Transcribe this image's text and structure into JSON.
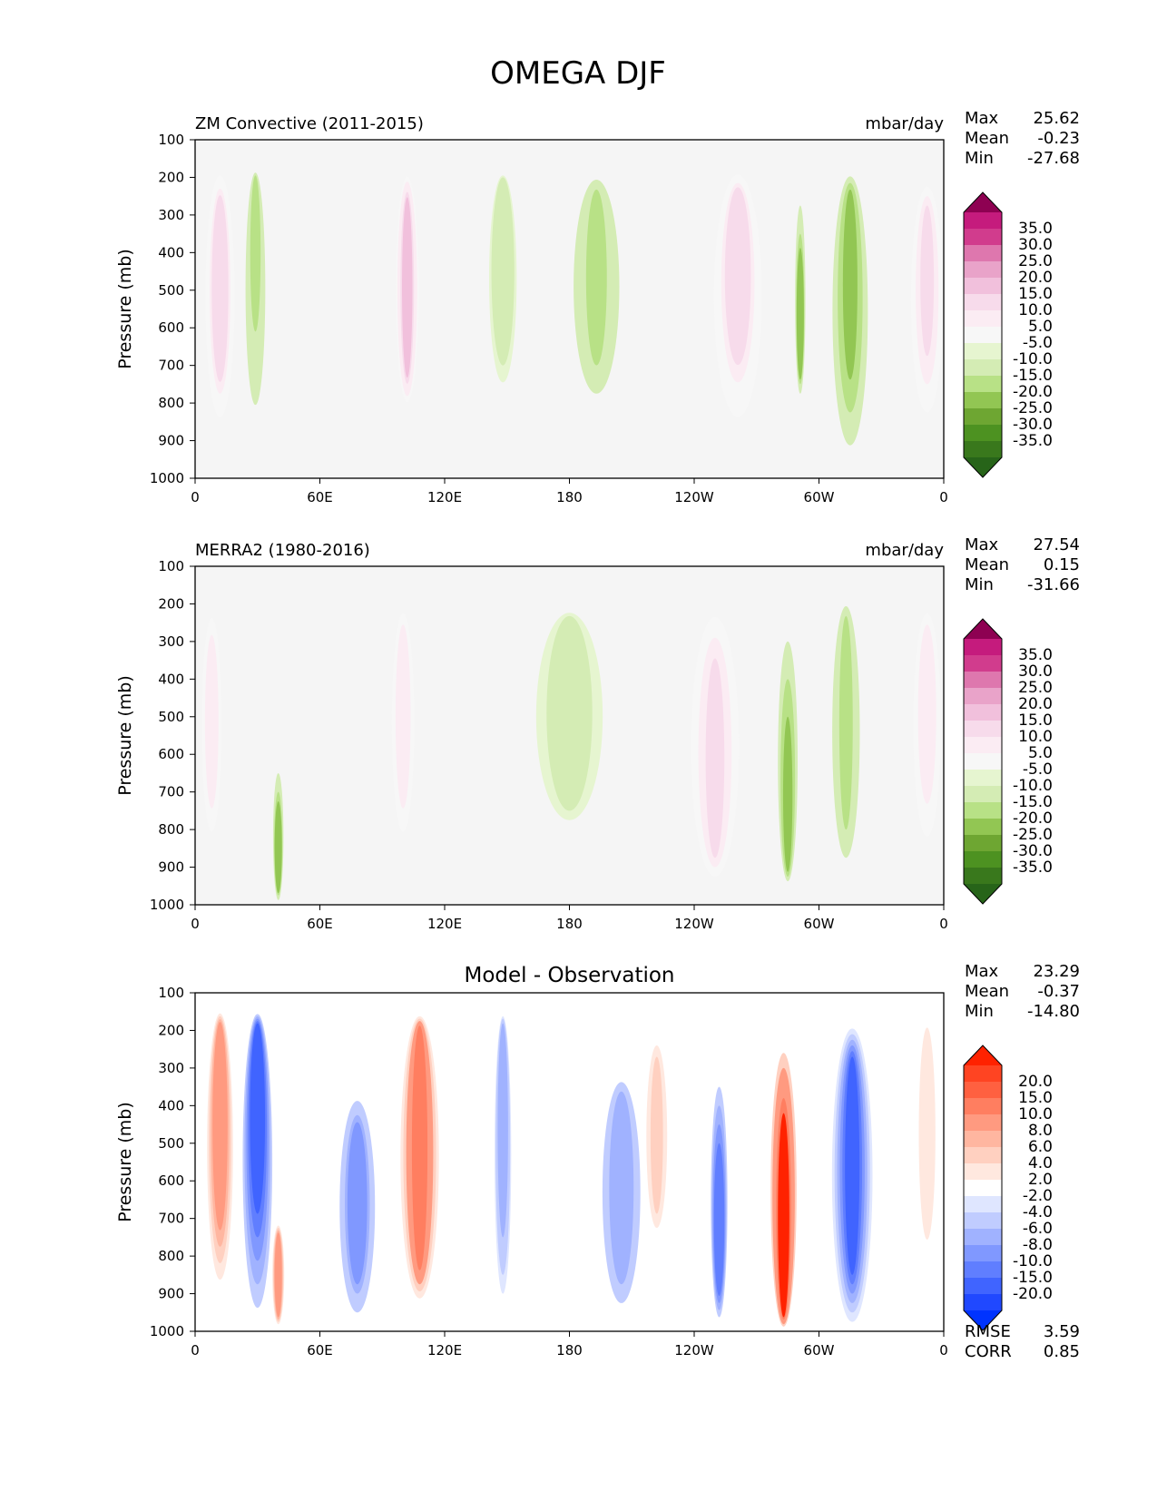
{
  "title": "OMEGA DJF",
  "colors": {
    "background": "#f5f5f5",
    "pink_strong": "#8e0152",
    "green_strong": "#276419",
    "red_strong": "#ff2200",
    "blue_strong": "#0033ff",
    "neutral": "#ffffff"
  },
  "axes_common": {
    "ylabel": "Pressure (mb)",
    "y_ticks": [
      "100",
      "200",
      "300",
      "400",
      "500",
      "600",
      "700",
      "800",
      "900",
      "1000"
    ],
    "x_ticks": [
      "0",
      "60E",
      "120E",
      "180",
      "120W",
      "60W",
      "0"
    ],
    "ylim": [
      100,
      1000
    ],
    "xlim": [
      0,
      360
    ]
  },
  "panels": [
    {
      "id": "model",
      "title_left": "ZM Convective (2011-2015)",
      "title_right": "mbar/day",
      "title_center": "",
      "stats": [
        {
          "label": "Max",
          "value": "25.62"
        },
        {
          "label": "Mean",
          "value": "-0.23"
        },
        {
          "label": "Min",
          "value": "-27.68"
        }
      ],
      "colorbar_labels": [
        "35.0",
        "30.0",
        "25.0",
        "20.0",
        "15.0",
        "10.0",
        "5.0",
        "-5.0",
        "-10.0",
        "-15.0",
        "-20.0",
        "-25.0",
        "-30.0",
        "-35.0"
      ],
      "colorbar_colors": [
        "#c51b7d",
        "#d13c8d",
        "#de77ae",
        "#e9a3c9",
        "#f1c0dc",
        "#f7dbeb",
        "#fbecf3",
        "#f7f7f7",
        "#e6f5d0",
        "#d4ecb4",
        "#b8e186",
        "#92c653",
        "#6ea632",
        "#4d9221",
        "#39781c"
      ],
      "extend_top": "#8e0152",
      "extend_bottom": "#276419",
      "rmse": null,
      "corr": null
    },
    {
      "id": "obs",
      "title_left": "MERRA2 (1980-2016)",
      "title_right": "mbar/day",
      "title_center": "",
      "stats": [
        {
          "label": "Max",
          "value": "27.54"
        },
        {
          "label": "Mean",
          "value": "0.15"
        },
        {
          "label": "Min",
          "value": "-31.66"
        }
      ],
      "colorbar_labels": [
        "35.0",
        "30.0",
        "25.0",
        "20.0",
        "15.0",
        "10.0",
        "5.0",
        "-5.0",
        "-10.0",
        "-15.0",
        "-20.0",
        "-25.0",
        "-30.0",
        "-35.0"
      ],
      "colorbar_colors": [
        "#c51b7d",
        "#d13c8d",
        "#de77ae",
        "#e9a3c9",
        "#f1c0dc",
        "#f7dbeb",
        "#fbecf3",
        "#f7f7f7",
        "#e6f5d0",
        "#d4ecb4",
        "#b8e186",
        "#92c653",
        "#6ea632",
        "#4d9221",
        "#39781c"
      ],
      "extend_top": "#8e0152",
      "extend_bottom": "#276419",
      "rmse": null,
      "corr": null
    },
    {
      "id": "diff",
      "title_left": "",
      "title_right": "",
      "title_center": "Model - Observation",
      "stats": [
        {
          "label": "Max",
          "value": "23.29"
        },
        {
          "label": "Mean",
          "value": "-0.37"
        },
        {
          "label": "Min",
          "value": "-14.80"
        }
      ],
      "colorbar_labels": [
        "20.0",
        "15.0",
        "10.0",
        "8.0",
        "6.0",
        "4.0",
        "2.0",
        "-2.0",
        "-4.0",
        "-6.0",
        "-8.0",
        "-10.0",
        "-15.0",
        "-20.0"
      ],
      "colorbar_colors": [
        "#ff4422",
        "#ff6040",
        "#ff7e60",
        "#ff9a80",
        "#ffb6a0",
        "#ffd0c0",
        "#ffe8df",
        "#ffffff",
        "#dfe6ff",
        "#c0ccff",
        "#a0b2ff",
        "#8098ff",
        "#607eff",
        "#4064ff",
        "#2048ff"
      ],
      "extend_top": "#ff2200",
      "extend_bottom": "#0033ff",
      "rmse": {
        "label": "RMSE",
        "value": "3.59"
      },
      "corr": {
        "label": "CORR",
        "value": "0.85"
      }
    }
  ],
  "chart_data": [
    {
      "type": "heatmap",
      "title": "ZM Convective (2011-2015)",
      "units": "mbar/day",
      "xlabel": "",
      "ylabel": "Pressure (mb)",
      "x_ticks": [
        "0",
        "60E",
        "120E",
        "180",
        "120W",
        "60W",
        "0"
      ],
      "y_ticks": [
        "100",
        "200",
        "300",
        "400",
        "500",
        "600",
        "700",
        "800",
        "900",
        "1000"
      ],
      "xlim": [
        0,
        360
      ],
      "ylim": [
        100,
        1000
      ],
      "y_reversed": true,
      "features": [
        {
          "lon_center": 12,
          "lon_width": 16,
          "p_top": 160,
          "p_bottom": 900,
          "value": 18,
          "core": [
            300,
            650
          ]
        },
        {
          "lon_center": 29,
          "lon_width": 12,
          "p_top": 180,
          "p_bottom": 1000,
          "value": -12,
          "core": [
            200,
            480
          ]
        },
        {
          "lon_center": 102,
          "lon_width": 12,
          "p_top": 170,
          "p_bottom": 830,
          "value": 20,
          "core": [
            280,
            700
          ]
        },
        {
          "lon_center": 148,
          "lon_width": 18,
          "p_top": 180,
          "p_bottom": 880,
          "value": -10,
          "core": [
            220,
            520
          ]
        },
        {
          "lon_center": 193,
          "lon_width": 32,
          "p_top": 180,
          "p_bottom": 850,
          "value": -12,
          "core": [
            250,
            650
          ]
        },
        {
          "lon_center": 261,
          "lon_width": 28,
          "p_top": 170,
          "p_bottom": 930,
          "value": 18,
          "core": [
            260,
            560
          ]
        },
        {
          "lon_center": 291,
          "lon_width": 4,
          "p_top": 200,
          "p_bottom": 800,
          "value": -20,
          "core": [
            500,
            700
          ]
        },
        {
          "lon_center": 315,
          "lon_width": 20,
          "p_top": 180,
          "p_bottom": 1000,
          "value": -18,
          "core": [
            250,
            650
          ]
        },
        {
          "lon_center": 352,
          "lon_width": 18,
          "p_top": 200,
          "p_bottom": 900,
          "value": 15,
          "core": [
            300,
            600
          ]
        }
      ],
      "stats": {
        "max": 25.62,
        "mean": -0.23,
        "min": -27.68
      },
      "levels": [
        -35,
        -30,
        -25,
        -20,
        -15,
        -10,
        -5,
        5,
        10,
        15,
        20,
        25,
        30,
        35
      ]
    },
    {
      "type": "heatmap",
      "title": "MERRA2 (1980-2016)",
      "units": "mbar/day",
      "xlabel": "",
      "ylabel": "Pressure (mb)",
      "x_ticks": [
        "0",
        "60E",
        "120E",
        "180",
        "120W",
        "60W",
        "0"
      ],
      "y_ticks": [
        "100",
        "200",
        "300",
        "400",
        "500",
        "600",
        "700",
        "800",
        "900",
        "1000"
      ],
      "xlim": [
        0,
        360
      ],
      "ylim": [
        100,
        1000
      ],
      "y_reversed": true,
      "features": [
        {
          "lon_center": 8,
          "lon_width": 12,
          "p_top": 170,
          "p_bottom": 900,
          "value": 12,
          "core": [
            350,
            650
          ]
        },
        {
          "lon_center": 40,
          "lon_width": 4,
          "p_top": 600,
          "p_bottom": 1000,
          "value": -20,
          "core": [
            800,
            950
          ]
        },
        {
          "lon_center": 100,
          "lon_width": 14,
          "p_top": 180,
          "p_bottom": 900,
          "value": 12,
          "core": [
            300,
            650
          ]
        },
        {
          "lon_center": 180,
          "lon_width": 80,
          "p_top": 180,
          "p_bottom": 900,
          "value": -6,
          "core": [
            250,
            700
          ]
        },
        {
          "lon_center": 250,
          "lon_width": 28,
          "p_top": 180,
          "p_bottom": 950,
          "value": 15,
          "core": [
            400,
            850
          ]
        },
        {
          "lon_center": 285,
          "lon_width": 10,
          "p_top": 200,
          "p_bottom": 950,
          "value": -18,
          "core": [
            600,
            900
          ]
        },
        {
          "lon_center": 313,
          "lon_width": 18,
          "p_top": 180,
          "p_bottom": 950,
          "value": -12,
          "core": [
            250,
            750
          ]
        },
        {
          "lon_center": 352,
          "lon_width": 18,
          "p_top": 180,
          "p_bottom": 950,
          "value": 12,
          "core": [
            300,
            600
          ]
        }
      ],
      "stats": {
        "max": 27.54,
        "mean": 0.15,
        "min": -31.66
      },
      "levels": [
        -35,
        -30,
        -25,
        -20,
        -15,
        -10,
        -5,
        5,
        10,
        15,
        20,
        25,
        30,
        35
      ]
    },
    {
      "type": "heatmap",
      "title": "Model - Observation",
      "units": "",
      "xlabel": "",
      "ylabel": "Pressure (mb)",
      "x_ticks": [
        "0",
        "60E",
        "120E",
        "180",
        "120W",
        "60W",
        "0"
      ],
      "y_ticks": [
        "100",
        "200",
        "300",
        "400",
        "500",
        "600",
        "700",
        "800",
        "900",
        "1000"
      ],
      "xlim": [
        0,
        360
      ],
      "ylim": [
        100,
        1000
      ],
      "y_reversed": true,
      "features": [
        {
          "lon_center": 12,
          "lon_width": 14,
          "p_top": 140,
          "p_bottom": 950,
          "value": 12,
          "core": [
            200,
            600
          ]
        },
        {
          "lon_center": 30,
          "lon_width": 14,
          "p_top": 150,
          "p_bottom": 1000,
          "value": -15,
          "core": [
            200,
            500
          ]
        },
        {
          "lon_center": 40,
          "lon_width": 6,
          "p_top": 700,
          "p_bottom": 1000,
          "value": 10,
          "core": [
            750,
            950
          ]
        },
        {
          "lon_center": 78,
          "lon_width": 20,
          "p_top": 350,
          "p_bottom": 1000,
          "value": -8,
          "core": [
            500,
            800
          ]
        },
        {
          "lon_center": 108,
          "lon_width": 22,
          "p_top": 150,
          "p_bottom": 950,
          "value": 15,
          "core": [
            200,
            800
          ]
        },
        {
          "lon_center": 148,
          "lon_width": 8,
          "p_top": 150,
          "p_bottom": 1000,
          "value": -6,
          "core": [
            200,
            600
          ]
        },
        {
          "lon_center": 205,
          "lon_width": 26,
          "p_top": 300,
          "p_bottom": 1000,
          "value": -5,
          "core": [
            400,
            800
          ]
        },
        {
          "lon_center": 222,
          "lon_width": 16,
          "p_top": 180,
          "p_bottom": 800,
          "value": 6,
          "core": [
            300,
            650
          ]
        },
        {
          "lon_center": 252,
          "lon_width": 8,
          "p_top": 250,
          "p_bottom": 1000,
          "value": -10,
          "core": [
            650,
            850
          ]
        },
        {
          "lon_center": 283,
          "lon_width": 14,
          "p_top": 180,
          "p_bottom": 1000,
          "value": 20,
          "core": [
            500,
            950
          ]
        },
        {
          "lon_center": 316,
          "lon_width": 20,
          "p_top": 180,
          "p_bottom": 1000,
          "value": -12,
          "core": [
            300,
            800
          ]
        },
        {
          "lon_center": 352,
          "lon_width": 16,
          "p_top": 180,
          "p_bottom": 850,
          "value": 5,
          "core": [
            200,
            700
          ]
        }
      ],
      "stats": {
        "max": 23.29,
        "mean": -0.37,
        "min": -14.8,
        "rmse": 3.59,
        "corr": 0.85
      },
      "levels": [
        -20,
        -15,
        -10,
        -8,
        -6,
        -4,
        -2,
        2,
        4,
        6,
        8,
        10,
        15,
        20
      ]
    }
  ]
}
